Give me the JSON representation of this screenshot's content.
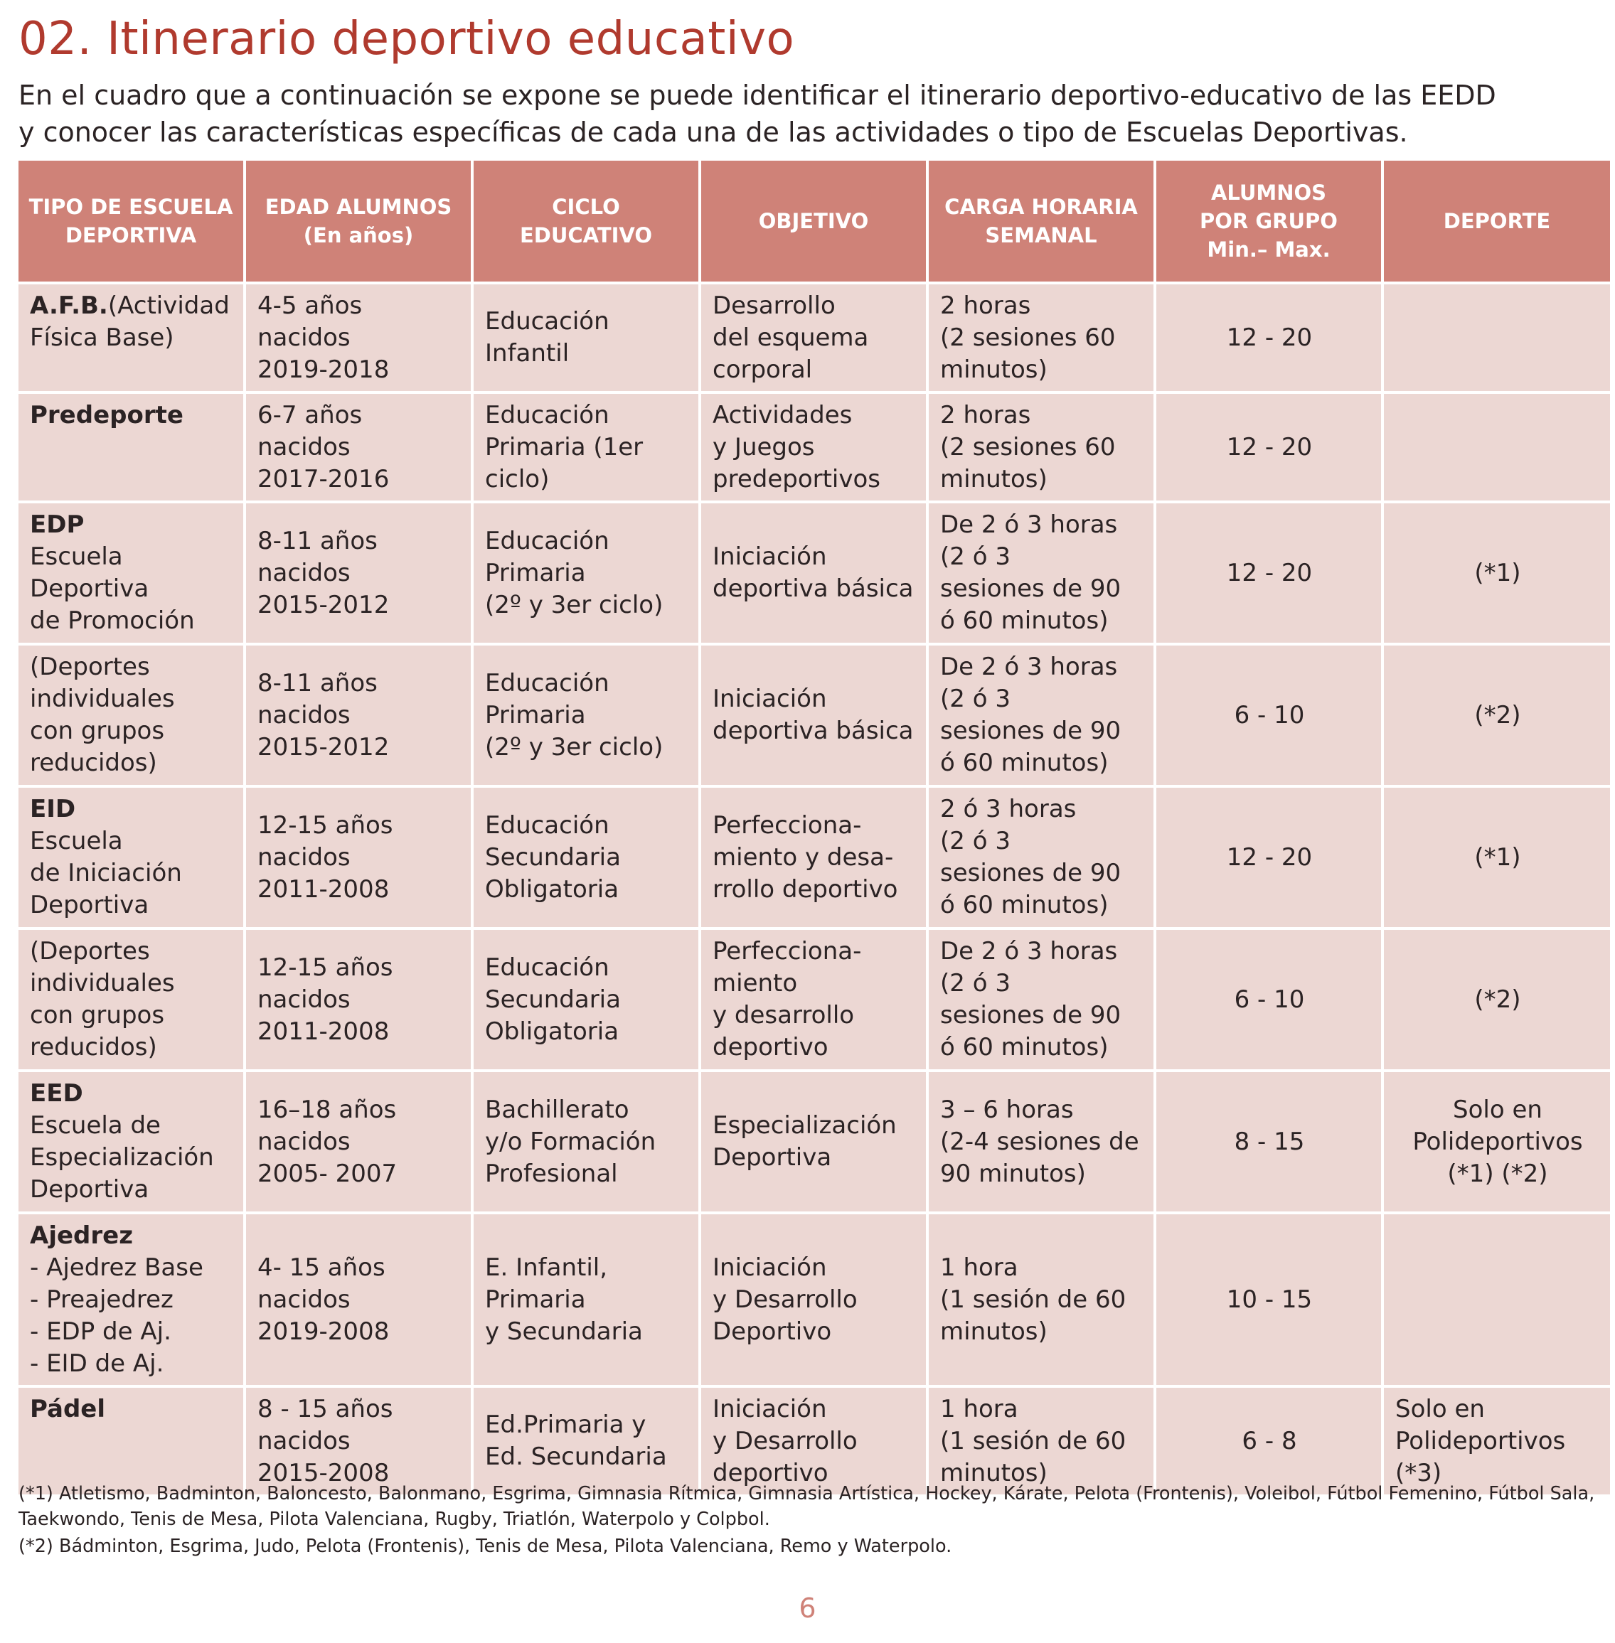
{
  "title": "02. Itinerario deportivo educativo",
  "intro": {
    "line1": "En el cuadro que a continuación se expone se puede identificar el itinerario deportivo-educativo de las EEDD",
    "line2": "y conocer las características específicas de cada una de las actividades o tipo de Escuelas Deportivas."
  },
  "table": {
    "headers": [
      "TIPO DE ESCUELA\nDEPORTIVA",
      "EDAD ALUMNOS\n(En años)",
      "CICLO\nEDUCATIVO",
      "OBJETIVO",
      "CARGA HORARIA\nSEMANAL",
      "ALUMNOS\nPOR GRUPO\nMin.– Max.",
      "DEPORTE"
    ],
    "rows": [
      {
        "tipo_bold": "A.F.B.",
        "tipo_rest": "(Actividad\nFísica Base)",
        "edad": "4-5 años\nnacidos\n2019-2018",
        "ciclo": "Educación\nInfantil",
        "objetivo": "Desarrollo\ndel esquema\ncorporal",
        "carga": "2 horas\n(2 sesiones 60\nminutos)",
        "alumnos": "12   -  20",
        "deporte": ""
      },
      {
        "tipo_bold": "Predeporte",
        "tipo_rest": "",
        "edad": "6-7 años\nnacidos\n2017-2016",
        "ciclo": "Educación\nPrimaria (1er\nciclo)",
        "objetivo": "Actividades\ny Juegos\npredeportivos",
        "carga": "2 horas\n(2 sesiones 60\nminutos)",
        "alumnos": "12   -  20",
        "deporte": ""
      },
      {
        "tipo_bold": "EDP",
        "tipo_rest": "\nEscuela\nDeportiva\nde Promoción",
        "edad": "8-11 años\nnacidos\n2015-2012",
        "ciclo": "Educación\nPrimaria\n(2º y 3er ciclo)",
        "objetivo": "Iniciación\ndeportiva básica",
        "carga": "De 2 ó 3 horas\n(2 ó 3\nsesiones de 90\nó 60 minutos)",
        "alumnos": "12   -  20",
        "deporte": "(*1)"
      },
      {
        "tipo_bold": "",
        "tipo_rest": "(Deportes\nindividuales\ncon grupos\nreducidos)",
        "edad": "8-11 años\nnacidos\n2015-2012",
        "ciclo": "Educación\nPrimaria\n(2º y 3er ciclo)",
        "objetivo": "Iniciación\ndeportiva básica",
        "carga": "De 2 ó 3 horas\n(2 ó 3\nsesiones de 90\nó 60 minutos)",
        "alumnos": "6 - 10",
        "deporte": "(*2)"
      },
      {
        "tipo_bold": "EID",
        "tipo_rest": "\nEscuela\nde Iniciación\nDeportiva",
        "edad": "12-15 años\nnacidos\n2011-2008",
        "ciclo": "Educación\nSecundaria\nObligatoria",
        "objetivo": "Perfecciona-\nmiento y desa-\nrrollo deportivo",
        "carga": "2 ó 3 horas\n(2 ó 3\nsesiones de 90\nó 60 minutos)",
        "alumnos": "12   -  20",
        "deporte": "(*1)"
      },
      {
        "tipo_bold": "",
        "tipo_rest": "(Deportes\nindividuales\ncon grupos\nreducidos)",
        "edad": "12-15 años\nnacidos\n2011-2008",
        "ciclo": "Educación\nSecundaria\nObligatoria",
        "objetivo": "Perfecciona-\nmiento\ny desarrollo\ndeportivo",
        "carga": "De 2 ó 3 horas\n(2 ó 3\nsesiones de 90\nó 60 minutos)",
        "alumnos": "6 - 10",
        "deporte": "(*2)"
      },
      {
        "tipo_bold": "EED",
        "tipo_rest": "\nEscuela de\nEspecialización\nDeportiva",
        "edad": "16–18 años\nnacidos\n2005- 2007",
        "ciclo": "Bachillerato\ny/o Formación\nProfesional",
        "objetivo": "Especialización\nDeportiva",
        "carga": "3 – 6 horas\n(2-4 sesiones de\n90 minutos)",
        "alumnos": "8   -   15",
        "deporte": "Solo en\nPolideportivos\n(*1) (*2)"
      },
      {
        "tipo_bold": "Ajedrez",
        "tipo_rest": "\n- Ajedrez Base\n- Preajedrez\n- EDP de Aj.\n- EID de Aj.",
        "edad": "4- 15 años\nnacidos\n2019-2008",
        "ciclo": "E. Infantil,\nPrimaria\ny Secundaria",
        "objetivo": "Iniciación\ny Desarrollo\nDeportivo",
        "carga": "1 hora\n(1 sesión de 60\nminutos)",
        "alumnos": "10   -   15",
        "deporte": ""
      },
      {
        "tipo_bold": "Pádel",
        "tipo_rest": "",
        "edad": "8 - 15 años\nnacidos\n2015-2008",
        "ciclo": "Ed.Primaria y\nEd. Secundaria",
        "objetivo": "Iniciación\ny Desarrollo\ndeportivo",
        "carga": "1 hora\n(1 sesión de 60\nminutos)",
        "alumnos": "6   -   8",
        "deporte": "Solo en\nPolideportivos\n(*3)"
      }
    ]
  },
  "footnotes": {
    "note1": "(*1) Atletismo, Badminton, Baloncesto, Balonmano, Esgrima, Gimnasia Rítmica, Gimnasia Artística, Hockey, Kárate, Pelota (Frontenis), Voleibol, Fútbol Femenino, Fútbol Sala, Taekwondo, Tenis de Mesa, Pilota Valenciana, Rugby, Triatlón, Waterpolo y Colpbol.",
    "note2": "(*2) Bádminton, Esgrima, Judo, Pelota (Frontenis), Tenis de Mesa, Pilota Valenciana, Remo y Waterpolo."
  },
  "page_number": "6",
  "colors": {
    "title": "#b03a2e",
    "header_bg": "#cf8278",
    "cell_bg": "#ecd7d3",
    "page_number": "#cf8278"
  }
}
